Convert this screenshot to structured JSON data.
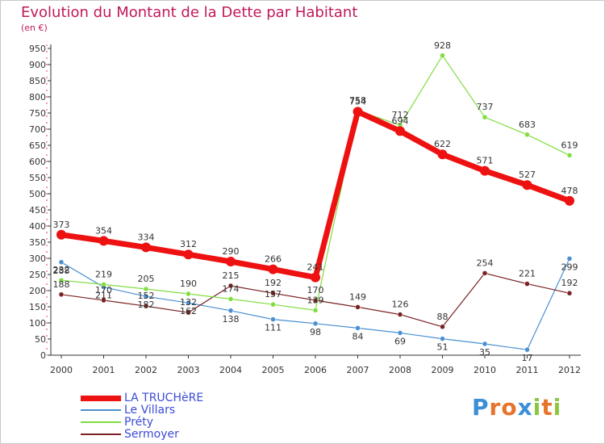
{
  "header": {
    "title": "Evolution du Montant de la Dette par Habitant",
    "subtitle": "(en €)"
  },
  "logo": {
    "letters": [
      "P",
      "r",
      "o",
      "x",
      "i",
      "t",
      "i"
    ],
    "colors": [
      "#3a8fd6",
      "#e8732a",
      "#e8732a",
      "#3a8fd6",
      "#8cc63f",
      "#e8732a",
      "#8cc63f"
    ]
  },
  "chart_data": {
    "type": "line",
    "title": "Evolution du Montant de la Dette par Habitant",
    "subtitle": "(en €)",
    "xlabel": "",
    "ylabel": "",
    "x": [
      "2000",
      "2001",
      "2002",
      "2003",
      "2004",
      "2005",
      "2006",
      "2007",
      "2008",
      "2009",
      "2010",
      "2011",
      "2012"
    ],
    "yticks": [
      0,
      50,
      100,
      150,
      200,
      250,
      300,
      350,
      400,
      450,
      500,
      550,
      600,
      650,
      700,
      750,
      800,
      850,
      900,
      950
    ],
    "ylim": [
      0,
      950
    ],
    "grid": false,
    "legend_position": "bottom-left",
    "series": [
      {
        "name": "LA TRUCHèRE",
        "color": "#ee1111",
        "values": [
          373,
          354,
          334,
          312,
          290,
          266,
          241,
          754,
          694,
          622,
          571,
          527,
          478
        ]
      },
      {
        "name": "Le Villars",
        "color": "#4a90d2",
        "values": [
          288,
          211,
          182,
          162,
          138,
          111,
          98,
          84,
          69,
          51,
          35,
          17,
          299
        ]
      },
      {
        "name": "Préty",
        "color": "#80dd40",
        "values": [
          232,
          219,
          205,
          190,
          174,
          157,
          139,
          758,
          712,
          928,
          737,
          683,
          619
        ]
      },
      {
        "name": "Sermoyer",
        "color": "#7a2222",
        "values": [
          188,
          170,
          152,
          132,
          215,
          192,
          170,
          149,
          126,
          88,
          254,
          221,
          192
        ]
      }
    ]
  }
}
